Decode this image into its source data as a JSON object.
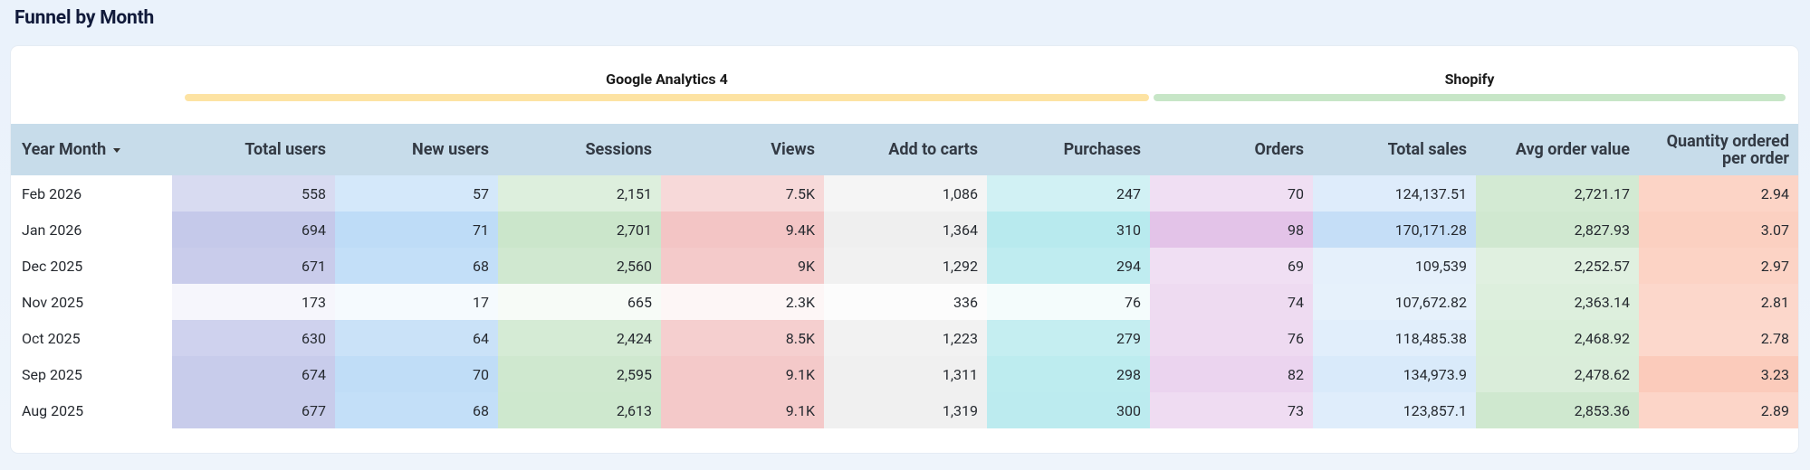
{
  "page": {
    "title": "Funnel by Month"
  },
  "groups": [
    {
      "label": "Google Analytics 4",
      "color": "#fde3a3"
    },
    {
      "label": "Shopify",
      "color": "#c7e6c7"
    }
  ],
  "table": {
    "first_header": "Year Month",
    "sort_icon": "caret-down-icon",
    "columns": [
      "Total users",
      "New users",
      "Sessions",
      "Views",
      "Add to carts",
      "Purchases",
      "Orders",
      "Total sales",
      "Avg order value",
      "Quantity ordered per order"
    ],
    "column_colors": [
      "#c5c9ea",
      "#bedcf7",
      "#cbe6cb",
      "#f3c5c5",
      "#efefef",
      "#b8eaee",
      "#e3c3e8",
      "#c5def7",
      "#cfe8cf",
      "#fbcbbb"
    ],
    "rows": [
      {
        "label": "Feb 2026",
        "values": [
          "558",
          "57",
          "2,151",
          "7.5K",
          "1,086",
          "247",
          "70",
          "124,137.51",
          "2,721.17",
          "2.94"
        ]
      },
      {
        "label": "Jan 2026",
        "values": [
          "694",
          "71",
          "2,701",
          "9.4K",
          "1,364",
          "310",
          "98",
          "170,171.28",
          "2,827.93",
          "3.07"
        ]
      },
      {
        "label": "Dec 2025",
        "values": [
          "671",
          "68",
          "2,560",
          "9K",
          "1,292",
          "294",
          "69",
          "109,539",
          "2,252.57",
          "2.97"
        ]
      },
      {
        "label": "Nov 2025",
        "values": [
          "173",
          "17",
          "665",
          "2.3K",
          "336",
          "76",
          "74",
          "107,672.82",
          "2,363.14",
          "2.81"
        ]
      },
      {
        "label": "Oct 2025",
        "values": [
          "630",
          "64",
          "2,424",
          "8.5K",
          "1,223",
          "279",
          "76",
          "118,485.38",
          "2,468.92",
          "2.78"
        ]
      },
      {
        "label": "Sep 2025",
        "values": [
          "674",
          "70",
          "2,595",
          "9.1K",
          "1,311",
          "298",
          "82",
          "134,973.9",
          "2,478.62",
          "3.23"
        ]
      },
      {
        "label": "Aug 2025",
        "values": [
          "677",
          "68",
          "2,613",
          "9.1K",
          "1,319",
          "300",
          "73",
          "123,857.1",
          "2,853.36",
          "2.89"
        ]
      }
    ]
  }
}
